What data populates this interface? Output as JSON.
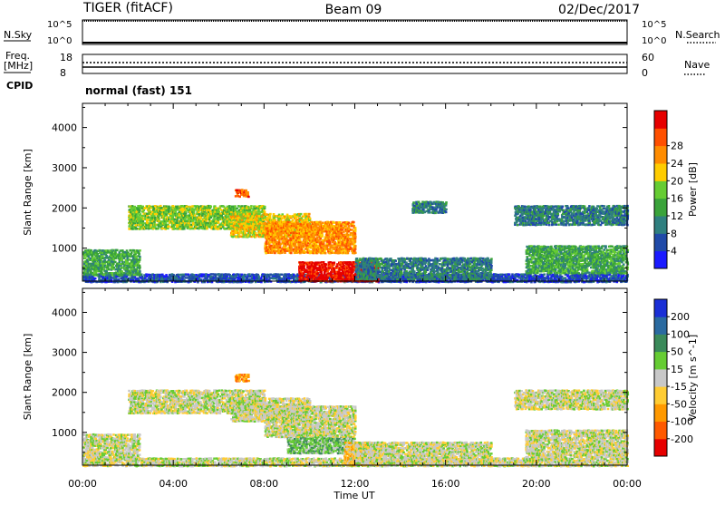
{
  "header": {
    "radar": "TIGER (fitACF)",
    "beam": "Beam 09",
    "date": "02/Dec/2017"
  },
  "strips": {
    "nsky_label": "N.Sky",
    "nsearch_label": "N.Search",
    "freq_label_1": "Freq.",
    "freq_label_2": "[MHz]",
    "nave_label": "Nave",
    "cpid_label": "CPID",
    "cpid_text": "normal (fast) 151",
    "noise_left_ticks": [
      "10^5",
      "10^0"
    ],
    "noise_right_ticks": [
      "10^5",
      "10^0"
    ],
    "freq_left_ticks": [
      "18",
      "8"
    ],
    "nave_right_ticks": [
      "60",
      "0"
    ]
  },
  "chart_data": [
    {
      "type": "heatmap",
      "name": "power",
      "ylabel": "Slant Range [km]",
      "xlabel": "Time UT",
      "xlim": [
        0,
        24
      ],
      "ylim": [
        180,
        4600
      ],
      "x_ticks": [
        "00:00",
        "04:00",
        "08:00",
        "12:00",
        "16:00",
        "20:00",
        "00:00"
      ],
      "y_ticks": [
        1000,
        2000,
        3000,
        4000
      ],
      "colorbar": {
        "label": "Power [dB]",
        "ticks": [
          "4",
          "8",
          "12",
          "16",
          "20",
          "24",
          "28"
        ],
        "colors": [
          "#1a1aff",
          "#204aa8",
          "#2f7f7f",
          "#3aa33a",
          "#66cc33",
          "#ffcc00",
          "#ff8c00",
          "#ff5000",
          "#e60000"
        ]
      },
      "echo_regions": [
        {
          "t": [
            0,
            24
          ],
          "r": [
            180,
            400
          ],
          "level": 1
        },
        {
          "t": [
            0,
            2.5
          ],
          "r": [
            350,
            1000
          ],
          "level": 3
        },
        {
          "t": [
            2,
            8
          ],
          "r": [
            1500,
            2100
          ],
          "level": 4
        },
        {
          "t": [
            6.5,
            10
          ],
          "r": [
            1300,
            1900
          ],
          "level": 5
        },
        {
          "t": [
            8,
            12
          ],
          "r": [
            900,
            1700
          ],
          "level": 6
        },
        {
          "t": [
            9.5,
            13
          ],
          "r": [
            200,
            700
          ],
          "level": 8
        },
        {
          "t": [
            12,
            18
          ],
          "r": [
            250,
            800
          ],
          "level": 2
        },
        {
          "t": [
            19.5,
            24
          ],
          "r": [
            400,
            1100
          ],
          "level": 3
        },
        {
          "t": [
            19,
            24
          ],
          "r": [
            1600,
            2100
          ],
          "level": 2
        },
        {
          "t": [
            14.5,
            16
          ],
          "r": [
            1900,
            2200
          ],
          "level": 2
        },
        {
          "t": [
            6.7,
            7.3
          ],
          "r": [
            2300,
            2500
          ],
          "level": 7
        }
      ]
    },
    {
      "type": "heatmap",
      "name": "velocity",
      "ylabel": "Slant Range [km]",
      "xlabel": "Time UT",
      "xlim": [
        0,
        24
      ],
      "ylim": [
        180,
        4600
      ],
      "x_ticks": [
        "00:00",
        "04:00",
        "08:00",
        "12:00",
        "16:00",
        "20:00",
        "00:00"
      ],
      "y_ticks": [
        1000,
        2000,
        3000,
        4000
      ],
      "colorbar": {
        "label": "Velocity [m s^-1]",
        "ticks": [
          "200",
          "100",
          "50",
          "15",
          "-15",
          "-50",
          "-100",
          "-200"
        ],
        "colors": [
          "#1a2fd6",
          "#2a6aa0",
          "#3a8a5a",
          "#66cc33",
          "#c8c8c8",
          "#ffcc33",
          "#ff9900",
          "#ff5a00",
          "#e60000"
        ]
      },
      "echo_regions": [
        {
          "t": [
            0,
            24
          ],
          "r": [
            180,
            400
          ],
          "level": 4
        },
        {
          "t": [
            0,
            2.5
          ],
          "r": [
            350,
            1000
          ],
          "level": 4
        },
        {
          "t": [
            2,
            8
          ],
          "r": [
            1500,
            2100
          ],
          "level": 4
        },
        {
          "t": [
            6.5,
            10
          ],
          "r": [
            1300,
            1900
          ],
          "level": 4
        },
        {
          "t": [
            8,
            12
          ],
          "r": [
            900,
            1700
          ],
          "level": 4
        },
        {
          "t": [
            9,
            12
          ],
          "r": [
            500,
            900
          ],
          "level": 3
        },
        {
          "t": [
            11.5,
            13
          ],
          "r": [
            200,
            800
          ],
          "level": 5
        },
        {
          "t": [
            12,
            18
          ],
          "r": [
            250,
            800
          ],
          "level": 4
        },
        {
          "t": [
            19.5,
            24
          ],
          "r": [
            400,
            1100
          ],
          "level": 4
        },
        {
          "t": [
            19,
            24
          ],
          "r": [
            1600,
            2100
          ],
          "level": 4
        },
        {
          "t": [
            6.7,
            7.3
          ],
          "r": [
            2300,
            2500
          ],
          "level": 6
        }
      ]
    }
  ]
}
